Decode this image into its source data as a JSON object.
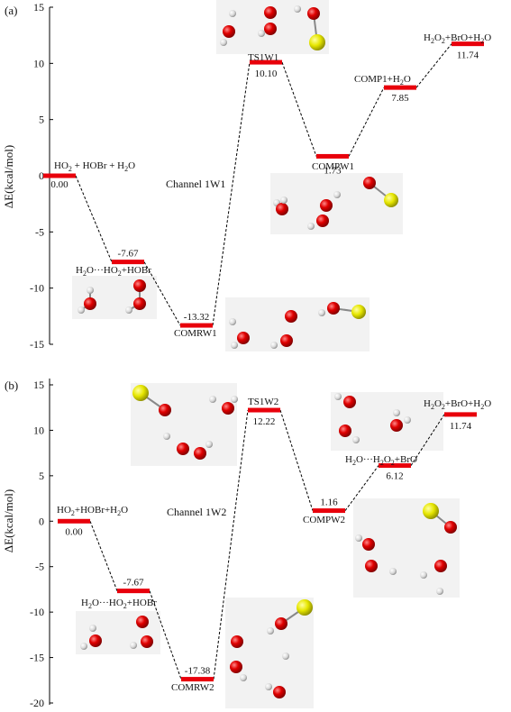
{
  "chart_data": [
    {
      "type": "line",
      "panel_label": "(a)",
      "ylabel": "ΔE(kcal/mol)",
      "ylim": [
        -15,
        15
      ],
      "yticks": [
        -15,
        -10,
        -5,
        0,
        5,
        10,
        15
      ],
      "grid": false,
      "channel_label": "Channel 1W1",
      "points": [
        {
          "name": "HO2 + HOBr + H2O",
          "energy": 0.0,
          "value_label": "0.00"
        },
        {
          "name": "H2O···HO2+HOBr",
          "energy": -7.67,
          "value_label": "-7.67"
        },
        {
          "name": "COMRW1",
          "energy": -13.32,
          "value_label": "-13.32"
        },
        {
          "name": "TS1W1",
          "energy": 10.1,
          "value_label": "10.10"
        },
        {
          "name": "COMPW1",
          "energy": 1.73,
          "value_label": "1.73"
        },
        {
          "name": "COMP1+H2O",
          "energy": 7.85,
          "value_label": "7.85"
        },
        {
          "name": "H2O2+BrO+H2O",
          "energy": 11.74,
          "value_label": "11.74"
        }
      ]
    },
    {
      "type": "line",
      "panel_label": "(b)",
      "ylabel": "ΔE(kcal/mol)",
      "ylim": [
        -20,
        15
      ],
      "yticks": [
        -20,
        -15,
        -10,
        -5,
        0,
        5,
        10,
        15
      ],
      "grid": false,
      "channel_label": "Channel 1W2",
      "points": [
        {
          "name": "HO2+HOBr+H2O",
          "energy": 0.0,
          "value_label": "0.00"
        },
        {
          "name": "H2O···HO2+HOBr",
          "energy": -7.67,
          "value_label": "-7.67"
        },
        {
          "name": "COMRW2",
          "energy": -17.38,
          "value_label": "-17.38"
        },
        {
          "name": "TS1W2",
          "energy": 12.22,
          "value_label": "12.22"
        },
        {
          "name": "COMPW2",
          "energy": 1.16,
          "value_label": "1.16"
        },
        {
          "name": "H2O···H2O2+BrO",
          "energy": 6.12,
          "value_label": "6.12"
        },
        {
          "name": "H2O2+BrO+H2O",
          "energy": 11.74,
          "value_label": "11.74"
        }
      ]
    }
  ],
  "colors": {
    "level_bar": "#e8000b",
    "oxygen_atom": "#d00000",
    "hydrogen_atom": "#ffffff",
    "bromine_atom": "#e6e600",
    "structure_panel": "#f2f2f2"
  },
  "legend": "none"
}
